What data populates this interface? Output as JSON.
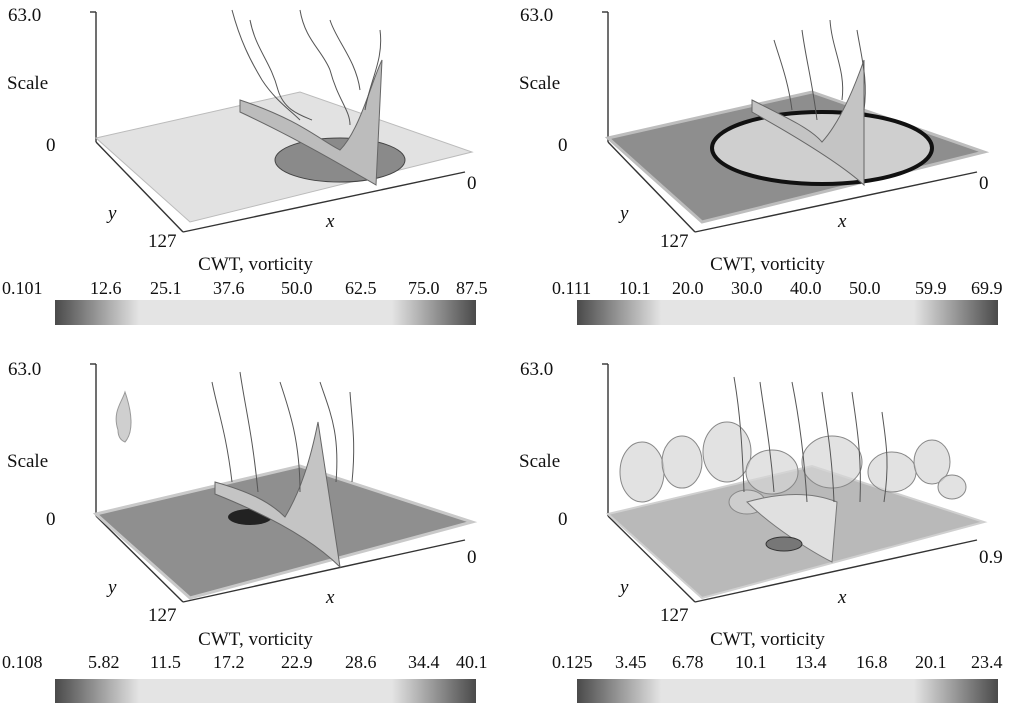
{
  "panels": [
    {
      "axes": {
        "z_max": "63.0",
        "z_label": "Scale",
        "z_min": "0",
        "x_max": "0",
        "x_label": "x",
        "y_label": "y",
        "y_max": "127"
      },
      "colorbar": {
        "title": "CWT, vorticity",
        "ticks": [
          "0.101",
          "12.6",
          "25.1",
          "37.6",
          "50.0",
          "62.5",
          "75.0",
          "87.5"
        ]
      }
    },
    {
      "axes": {
        "z_max": "63.0",
        "z_label": "Scale",
        "z_min": "0",
        "x_max": "0",
        "x_label": "x",
        "y_label": "y",
        "y_max": "127"
      },
      "colorbar": {
        "title": "CWT, vorticity",
        "ticks": [
          "0.111",
          "10.1",
          "20.0",
          "30.0",
          "40.0",
          "50.0",
          "59.9",
          "69.9"
        ]
      }
    },
    {
      "axes": {
        "z_max": "63.0",
        "z_label": "Scale",
        "z_min": "0",
        "x_max": "0",
        "x_label": "x",
        "y_label": "y",
        "y_max": "127"
      },
      "colorbar": {
        "title": "CWT, vorticity",
        "ticks": [
          "0.108",
          "5.82",
          "11.5",
          "17.2",
          "22.9",
          "28.6",
          "34.4",
          "40.1"
        ]
      }
    },
    {
      "axes": {
        "z_max": "63.0",
        "z_label": "Scale",
        "z_min": "0",
        "x_max": "0.9",
        "x_label": "x",
        "y_label": "y",
        "y_max": "127"
      },
      "colorbar": {
        "title": "CWT, vorticity",
        "ticks": [
          "0.125",
          "3.45",
          "6.78",
          "10.1",
          "13.4",
          "16.8",
          "20.1",
          "23.4"
        ]
      }
    }
  ],
  "colors": {
    "colorbar_dark": "#4a4a4a",
    "colorbar_light": "#e4e4e4",
    "surface": "#9a9a9a"
  }
}
